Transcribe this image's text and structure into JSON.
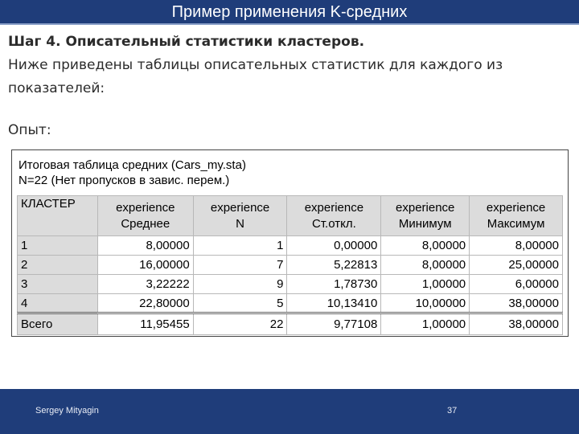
{
  "slide": {
    "title": "Пример применения K-средних",
    "step_heading": "Шаг 4. Описательный статистики кластеров.",
    "body_line1": "Ниже приведены таблицы описательных статистик для каждого из",
    "body_line2": "показателей:",
    "label_opyt": "Опыт:"
  },
  "table": {
    "title_line1": "Итоговая таблица средних (Cars_my.sta)",
    "title_line2": "N=22 (Нет пропусков в завис. перем.)",
    "headers": [
      {
        "line1": "КЛАСТЕР",
        "line2": ""
      },
      {
        "line1": "experience",
        "line2": "Среднее"
      },
      {
        "line1": "experience",
        "line2": "N"
      },
      {
        "line1": "experience",
        "line2": "Ст.откл."
      },
      {
        "line1": "experience",
        "line2": "Минимум"
      },
      {
        "line1": "experience",
        "line2": "Максимум"
      }
    ],
    "rows": [
      [
        "1",
        "8,00000",
        "1",
        "0,00000",
        "8,00000",
        "8,00000"
      ],
      [
        "2",
        "16,00000",
        "7",
        "5,22813",
        "8,00000",
        "25,00000"
      ],
      [
        "3",
        "3,22222",
        "9",
        "1,78730",
        "1,00000",
        "6,00000"
      ],
      [
        "4",
        "22,80000",
        "5",
        "10,13410",
        "10,00000",
        "38,00000"
      ],
      [
        "Всего",
        "11,95455",
        "22",
        "9,77108",
        "1,00000",
        "38,00000"
      ]
    ]
  },
  "footer": {
    "author": "Sergey Mityagin",
    "page_number": "37",
    "logo_icon": "dot-grid-logo-icon"
  },
  "colors": {
    "bar_background": "#1f3d7a",
    "header_cell": "#dcdcdc",
    "logo_accent": "#e0322f"
  }
}
